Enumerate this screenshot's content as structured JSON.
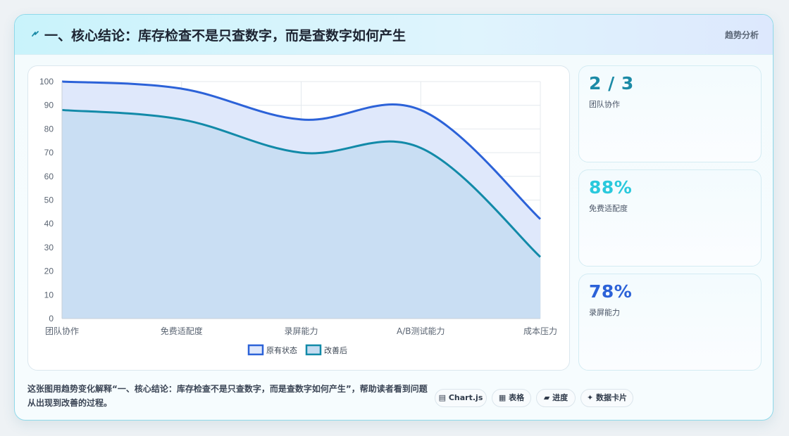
{
  "header": {
    "icon": "lightning-icon",
    "title": "一、核心结论：库存检查不是只查数字，而是查数字如何产生",
    "tag": "趋势分析"
  },
  "chart_data": {
    "type": "area",
    "categories": [
      "团队协作",
      "免费适配度",
      "录屏能力",
      "A/B测试能力",
      "成本压力"
    ],
    "series": [
      {
        "name": "原有状态",
        "values": [
          100,
          97,
          84,
          88,
          42
        ],
        "color": "#2c62d8",
        "fill": "#dfe8fb"
      },
      {
        "name": "改善后",
        "values": [
          88,
          84,
          70,
          72,
          26
        ],
        "color": "#128aa8",
        "fill": "#c5dcf1"
      }
    ],
    "ylim": [
      0,
      100
    ],
    "yticks": [
      "0",
      "10",
      "20",
      "30",
      "40",
      "50",
      "60",
      "70",
      "80",
      "90",
      "100"
    ],
    "grid": true,
    "legend": "bottom"
  },
  "stats": [
    {
      "value": "2 / 3",
      "label": "团队协作",
      "color": "#1b8aa6"
    },
    {
      "value": "88%",
      "label": "免费适配度",
      "color": "#2ac9dc"
    },
    {
      "value": "78%",
      "label": "录屏能力",
      "color": "#2c62d8"
    }
  ],
  "footer": {
    "text": "这张图用趋势变化解释“一、核心结论：库存检查不是只查数字，而是查数字如何产生”，帮助读者看到问题从出现到改善的过程。",
    "chips": [
      {
        "icon": "chart-icon",
        "glyph": "▤",
        "label": "Chart.js"
      },
      {
        "icon": "table-icon",
        "glyph": "▦",
        "label": "表格"
      },
      {
        "icon": "progress-icon",
        "glyph": "▰",
        "label": "进度"
      },
      {
        "icon": "sparkle-icon",
        "glyph": "✦",
        "label": "数据卡片"
      }
    ]
  }
}
